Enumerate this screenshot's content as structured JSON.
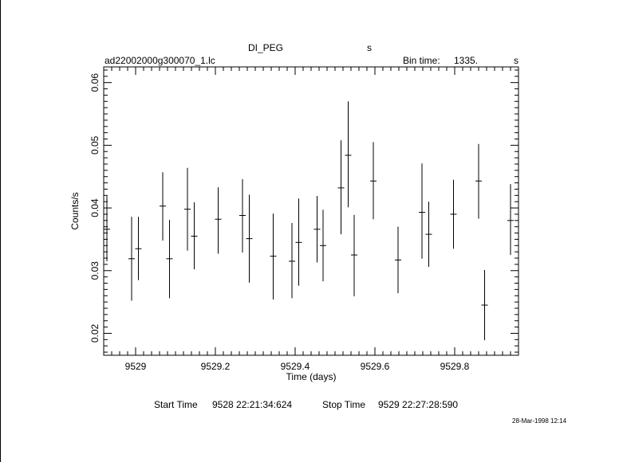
{
  "header": {
    "object": "DI_PEG",
    "object_unit": "s",
    "filename": "ad22002000g300070_1.lc",
    "bin_time_label": "Bin time:",
    "bin_time_value": "1335.",
    "bin_time_unit": "s"
  },
  "footer": {
    "start_label": "Start Time",
    "start_value": "9528 22:21:34:624",
    "stop_label": "Stop Time",
    "stop_value": "9529 22:27:28:590",
    "date_stamp": "28-Mar-1998 12:14"
  },
  "chart_data": {
    "type": "scatter",
    "xlabel": "Time (days)",
    "ylabel": "Counts/s",
    "xlim": [
      9528.92,
      9529.96
    ],
    "ylim": [
      0.0165,
      0.0625
    ],
    "xticks": [
      9529,
      9529.2,
      9529.4,
      9529.6,
      9529.8
    ],
    "xtick_labels": [
      "9529",
      "9529.2",
      "9529.4",
      "9529.6",
      "9529.8"
    ],
    "yticks": [
      0.02,
      0.03,
      0.04,
      0.05,
      0.06
    ],
    "ytick_labels": [
      "0.02",
      "0.03",
      "0.04",
      "0.05",
      "0.06"
    ],
    "grid": false,
    "points": [
      {
        "x": 9528.928,
        "y": 0.0366,
        "ylo": 0.0315,
        "yhi": 0.0419
      },
      {
        "x": 9528.99,
        "y": 0.0319,
        "ylo": 0.0252,
        "yhi": 0.0386
      },
      {
        "x": 9529.007,
        "y": 0.0335,
        "ylo": 0.0285,
        "yhi": 0.0386
      },
      {
        "x": 9529.068,
        "y": 0.0403,
        "ylo": 0.0348,
        "yhi": 0.0457
      },
      {
        "x": 9529.085,
        "y": 0.0319,
        "ylo": 0.0256,
        "yhi": 0.0381
      },
      {
        "x": 9529.13,
        "y": 0.0398,
        "ylo": 0.0332,
        "yhi": 0.0464
      },
      {
        "x": 9529.147,
        "y": 0.0355,
        "ylo": 0.0302,
        "yhi": 0.0409
      },
      {
        "x": 9529.207,
        "y": 0.0382,
        "ylo": 0.0327,
        "yhi": 0.0433
      },
      {
        "x": 9529.268,
        "y": 0.0388,
        "ylo": 0.0329,
        "yhi": 0.0446
      },
      {
        "x": 9529.285,
        "y": 0.0351,
        "ylo": 0.0281,
        "yhi": 0.0421
      },
      {
        "x": 9529.345,
        "y": 0.0323,
        "ylo": 0.0254,
        "yhi": 0.0391
      },
      {
        "x": 9529.392,
        "y": 0.0315,
        "ylo": 0.0256,
        "yhi": 0.0376
      },
      {
        "x": 9529.409,
        "y": 0.0345,
        "ylo": 0.0276,
        "yhi": 0.0415
      },
      {
        "x": 9529.455,
        "y": 0.0366,
        "ylo": 0.0313,
        "yhi": 0.0419
      },
      {
        "x": 9529.47,
        "y": 0.034,
        "ylo": 0.0283,
        "yhi": 0.0397
      },
      {
        "x": 9529.515,
        "y": 0.0432,
        "ylo": 0.0358,
        "yhi": 0.0508
      },
      {
        "x": 9529.533,
        "y": 0.0484,
        "ylo": 0.0401,
        "yhi": 0.057
      },
      {
        "x": 9529.548,
        "y": 0.0325,
        "ylo": 0.0259,
        "yhi": 0.0389
      },
      {
        "x": 9529.596,
        "y": 0.0443,
        "ylo": 0.0382,
        "yhi": 0.0505
      },
      {
        "x": 9529.658,
        "y": 0.0317,
        "ylo": 0.0264,
        "yhi": 0.037
      },
      {
        "x": 9529.718,
        "y": 0.0393,
        "ylo": 0.0319,
        "yhi": 0.0471
      },
      {
        "x": 9529.735,
        "y": 0.0358,
        "ylo": 0.0306,
        "yhi": 0.041
      },
      {
        "x": 9529.797,
        "y": 0.039,
        "ylo": 0.0335,
        "yhi": 0.0445
      },
      {
        "x": 9529.86,
        "y": 0.0443,
        "ylo": 0.0383,
        "yhi": 0.0502
      },
      {
        "x": 9529.875,
        "y": 0.0245,
        "ylo": 0.0189,
        "yhi": 0.0301
      },
      {
        "x": 9529.94,
        "y": 0.038,
        "ylo": 0.0325,
        "yhi": 0.0438
      }
    ]
  }
}
